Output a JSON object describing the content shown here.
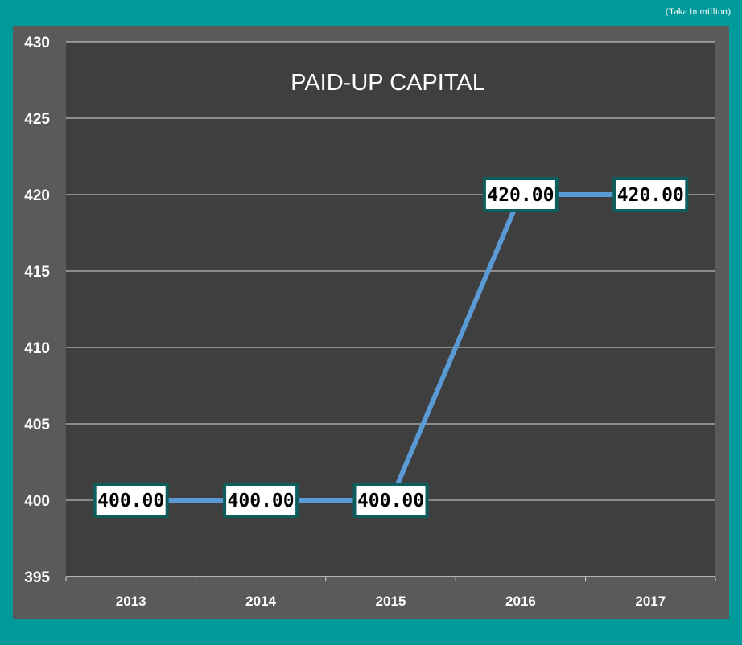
{
  "unit_note": "(Taka in million)",
  "colors": {
    "background": "#009a9a",
    "frame": "#5a5a5a",
    "plot": "#3f3f3f",
    "line": "#5b9bd5",
    "label_border": "#0e5c5c"
  },
  "chart_data": {
    "type": "line",
    "title": "PAID-UP CAPITAL",
    "categories": [
      "2013",
      "2014",
      "2015",
      "2016",
      "2017"
    ],
    "values": [
      400,
      400,
      400,
      420,
      420
    ],
    "data_labels": [
      "400.00",
      "400.00",
      "400.00",
      "420.00",
      "420.00"
    ],
    "ylim": [
      395,
      430
    ],
    "yticks": [
      "395",
      "400",
      "405",
      "410",
      "415",
      "420",
      "425",
      "430"
    ],
    "xlabel": "",
    "ylabel": "",
    "grid": true,
    "legend": "none"
  }
}
